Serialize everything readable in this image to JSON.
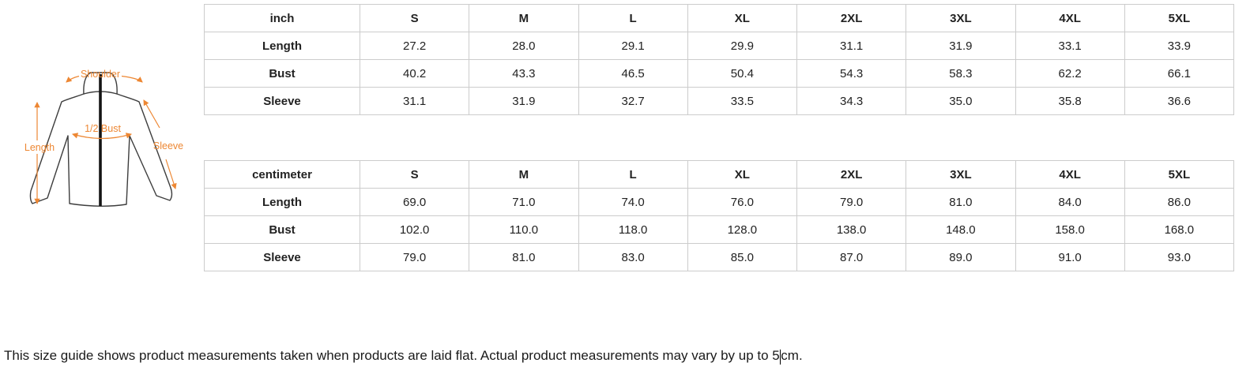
{
  "diagram": {
    "labels": {
      "shoulder": "Shoulder",
      "length": "Length",
      "half_bust": "1/2 Bust",
      "sleeve": "Sleeve"
    },
    "accent_color": "#ED8733",
    "outline_color": "#3d3d3d"
  },
  "tables": [
    {
      "unit": "inch",
      "columns": [
        "S",
        "M",
        "L",
        "XL",
        "2XL",
        "3XL",
        "4XL",
        "5XL"
      ],
      "rows": [
        {
          "label": "Length",
          "values": [
            "27.2",
            "28.0",
            "29.1",
            "29.9",
            "31.1",
            "31.9",
            "33.1",
            "33.9"
          ]
        },
        {
          "label": "Bust",
          "values": [
            "40.2",
            "43.3",
            "46.5",
            "50.4",
            "54.3",
            "58.3",
            "62.2",
            "66.1"
          ]
        },
        {
          "label": "Sleeve",
          "values": [
            "31.1",
            "31.9",
            "32.7",
            "33.5",
            "34.3",
            "35.0",
            "35.8",
            "36.6"
          ]
        }
      ]
    },
    {
      "unit": "centimeter",
      "columns": [
        "S",
        "M",
        "L",
        "XL",
        "2XL",
        "3XL",
        "4XL",
        "5XL"
      ],
      "rows": [
        {
          "label": "Length",
          "values": [
            "69.0",
            "71.0",
            "74.0",
            "76.0",
            "79.0",
            "81.0",
            "84.0",
            "86.0"
          ]
        },
        {
          "label": "Bust",
          "values": [
            "102.0",
            "110.0",
            "118.0",
            "128.0",
            "138.0",
            "148.0",
            "158.0",
            "168.0"
          ]
        },
        {
          "label": "Sleeve",
          "values": [
            "79.0",
            "81.0",
            "83.0",
            "85.0",
            "87.0",
            "89.0",
            "91.0",
            "93.0"
          ]
        }
      ]
    }
  ],
  "note": {
    "before_caret": "This size guide shows product measurements taken when products are laid flat. Actual product measurements may vary by up to 5",
    "after_caret": "cm."
  },
  "colors": {
    "table_border": "#cccccc",
    "text": "#222222",
    "accent": "#ED8733"
  }
}
